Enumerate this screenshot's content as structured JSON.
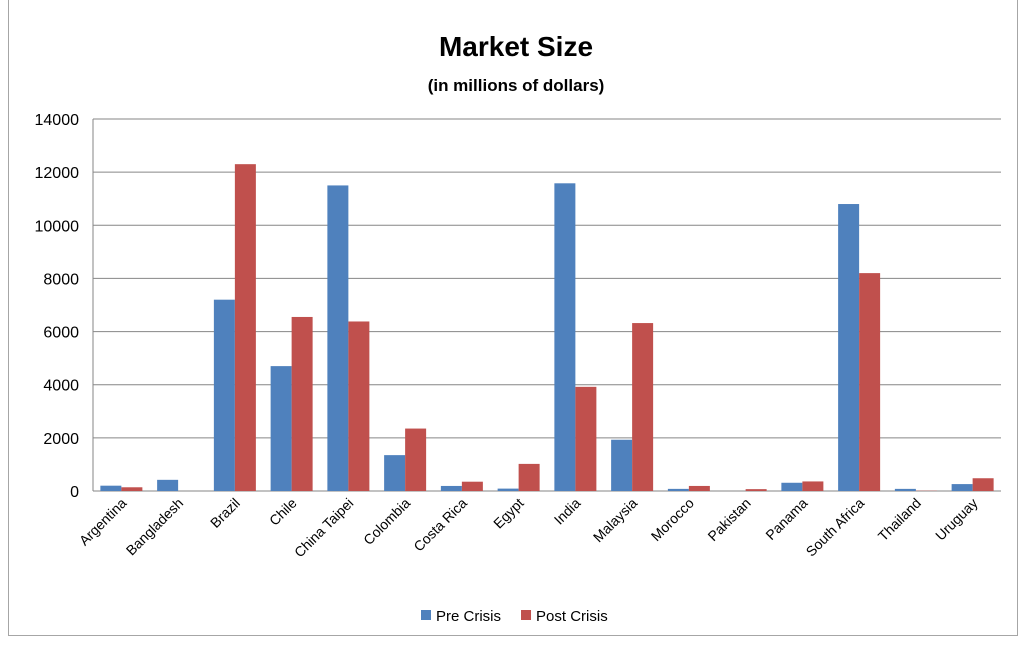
{
  "chart_data": {
    "type": "bar",
    "title": "Market Size",
    "subtitle": "(in millions of dollars)",
    "xlabel": "",
    "ylabel": "",
    "ylim": [
      0,
      14000
    ],
    "yticks": [
      0,
      2000,
      4000,
      6000,
      8000,
      10000,
      12000,
      14000
    ],
    "grid": true,
    "legend_position": "bottom",
    "categories": [
      "Argentina",
      "Bangladesh",
      "Brazil",
      "Chile",
      "China Taipei",
      "Colombia",
      "Costa Rica",
      "Egypt",
      "India",
      "Malaysia",
      "Morocco",
      "Pakistan",
      "Panama",
      "South Africa",
      "Thailand",
      "Uruguay"
    ],
    "series": [
      {
        "name": "Pre Crisis",
        "color": "#4f81bd",
        "values": [
          200,
          420,
          7200,
          4700,
          11500,
          1350,
          190,
          90,
          11580,
          1930,
          80,
          0,
          310,
          10800,
          80,
          260
        ]
      },
      {
        "name": "Post Crisis",
        "color": "#c0504d",
        "values": [
          140,
          0,
          12300,
          6550,
          6380,
          2350,
          350,
          1020,
          3920,
          6320,
          190,
          70,
          360,
          8200,
          10,
          480
        ]
      }
    ]
  }
}
